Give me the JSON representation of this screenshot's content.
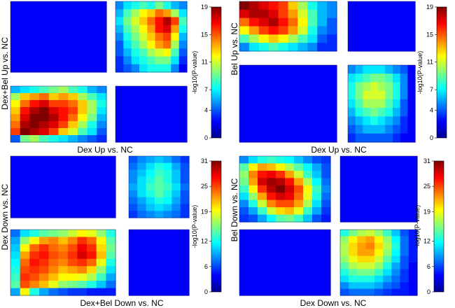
{
  "chart_data": [
    {
      "type": "heatmap",
      "panel": "top-left",
      "xlabel": "Dex Up vs. NC",
      "ylabel": "Dex+Bel Up vs. NC",
      "colorbar": {
        "label": "-log10(P-value)",
        "ticks": [
          0,
          4,
          7,
          11,
          15,
          19
        ],
        "range": [
          0,
          19
        ]
      },
      "quadrants": {
        "top_left": [
          [
            0
          ]
        ],
        "top_right": [
          [
            3,
            5,
            6,
            7,
            6,
            8,
            6,
            4,
            3
          ],
          [
            4,
            7,
            9,
            11,
            12,
            14,
            13,
            9,
            5
          ],
          [
            5,
            8,
            10,
            12,
            14,
            16,
            18,
            15,
            7
          ],
          [
            4,
            7,
            9,
            11,
            13,
            16,
            17,
            13,
            6
          ],
          [
            3,
            6,
            8,
            10,
            12,
            14,
            15,
            11,
            4
          ],
          [
            2,
            5,
            7,
            9,
            11,
            13,
            14,
            9,
            3
          ],
          [
            2,
            4,
            6,
            7,
            9,
            10,
            11,
            7,
            2
          ],
          [
            1,
            3,
            5,
            6,
            7,
            8,
            8,
            5,
            1
          ],
          [
            1,
            2,
            3,
            5,
            6,
            6,
            6,
            3,
            0
          ]
        ],
        "bottom_left": [
          [
            4,
            5,
            6,
            7,
            8,
            9,
            7,
            6,
            4,
            3
          ],
          [
            9,
            12,
            13,
            14,
            12,
            13,
            12,
            9,
            7,
            5
          ],
          [
            11,
            14,
            16,
            17,
            15,
            15,
            14,
            12,
            9,
            6
          ],
          [
            12,
            16,
            18,
            19,
            17,
            16,
            15,
            12,
            9,
            5
          ],
          [
            13,
            17,
            19,
            19,
            18,
            16,
            14,
            11,
            8,
            4
          ],
          [
            14,
            18,
            19,
            18,
            17,
            15,
            12,
            9,
            6,
            3
          ],
          [
            15,
            19,
            18,
            17,
            15,
            12,
            10,
            7,
            5,
            2
          ],
          [
            2,
            8,
            9,
            7,
            6,
            5,
            4,
            3,
            2,
            1
          ]
        ],
        "bottom_right": [
          [
            0
          ]
        ]
      }
    },
    {
      "type": "heatmap",
      "panel": "top-right",
      "xlabel": "Dex Up vs. NC",
      "ylabel": "Bel Up vs. NC",
      "colorbar": {
        "label": "-log10(P-value)",
        "ticks": [
          0,
          4,
          7,
          11,
          15,
          19
        ],
        "range": [
          0,
          19
        ]
      },
      "quadrants": {
        "top_left": [
          [
            19,
            18,
            17,
            16,
            15,
            12,
            9,
            6,
            4,
            3
          ],
          [
            17,
            18,
            18,
            17,
            15,
            13,
            10,
            7,
            4,
            3
          ],
          [
            14,
            16,
            17,
            18,
            16,
            14,
            11,
            7,
            4,
            2
          ],
          [
            11,
            13,
            15,
            16,
            15,
            13,
            10,
            6,
            3,
            2
          ],
          [
            7,
            9,
            11,
            12,
            11,
            9,
            7,
            5,
            2,
            1
          ],
          [
            3,
            5,
            6,
            7,
            6,
            5,
            4,
            3,
            1,
            1
          ]
        ],
        "top_right": [
          [
            0
          ]
        ],
        "bottom_left": [
          [
            0
          ]
        ],
        "bottom_right": [
          [
            3,
            4,
            5,
            5,
            5,
            4,
            3,
            2,
            0
          ],
          [
            5,
            6,
            7,
            8,
            8,
            7,
            5,
            3,
            0
          ],
          [
            6,
            8,
            9,
            10,
            9,
            8,
            6,
            3,
            0
          ],
          [
            6,
            8,
            10,
            10,
            10,
            8,
            6,
            3,
            0
          ],
          [
            5,
            7,
            9,
            9,
            9,
            7,
            5,
            2,
            0
          ],
          [
            4,
            6,
            7,
            8,
            7,
            6,
            4,
            2,
            0
          ],
          [
            3,
            4,
            5,
            6,
            5,
            4,
            3,
            1,
            0
          ],
          [
            2,
            3,
            4,
            4,
            4,
            3,
            2,
            1,
            0
          ],
          [
            1,
            2,
            2,
            2,
            2,
            2,
            1,
            0,
            0
          ]
        ]
      }
    },
    {
      "type": "heatmap",
      "panel": "bottom-left",
      "xlabel": "Dex+Bel Down vs. NC",
      "ylabel": "Dex Down vs. NC",
      "colorbar": {
        "label": "-log10(P-value)",
        "ticks": [
          0,
          6,
          12,
          19,
          25,
          31
        ],
        "range": [
          0,
          31
        ]
      },
      "quadrants": {
        "top_left": [
          [
            0
          ]
        ],
        "top_right": [
          [
            3,
            5,
            6,
            7,
            6,
            4,
            2
          ],
          [
            4,
            6,
            8,
            10,
            9,
            6,
            3
          ],
          [
            5,
            7,
            9,
            11,
            10,
            7,
            3
          ],
          [
            5,
            8,
            10,
            12,
            10,
            7,
            3
          ],
          [
            6,
            8,
            11,
            12,
            11,
            8,
            4
          ],
          [
            5,
            8,
            10,
            12,
            10,
            7,
            3
          ],
          [
            4,
            6,
            8,
            10,
            9,
            6,
            3
          ],
          [
            3,
            5,
            7,
            8,
            7,
            5,
            2
          ],
          [
            2,
            4,
            5,
            6,
            5,
            4,
            2
          ]
        ],
        "bottom_left": [
          [
            4,
            8,
            10,
            12,
            13,
            14,
            16,
            18,
            17,
            14,
            10
          ],
          [
            6,
            14,
            18,
            21,
            22,
            20,
            22,
            25,
            23,
            18,
            12
          ],
          [
            7,
            18,
            23,
            25,
            23,
            22,
            24,
            27,
            25,
            19,
            13
          ],
          [
            8,
            21,
            25,
            26,
            24,
            23,
            25,
            28,
            26,
            20,
            12
          ],
          [
            9,
            23,
            26,
            25,
            23,
            22,
            24,
            25,
            23,
            17,
            10
          ],
          [
            10,
            24,
            25,
            24,
            22,
            20,
            21,
            22,
            19,
            14,
            8
          ],
          [
            11,
            25,
            24,
            22,
            20,
            18,
            18,
            17,
            15,
            11,
            6
          ],
          [
            12,
            24,
            22,
            20,
            17,
            14,
            13,
            12,
            10,
            7,
            4
          ],
          [
            6,
            18,
            10,
            6,
            4,
            3,
            2,
            2,
            1,
            1,
            1
          ]
        ],
        "bottom_right": [
          [
            0
          ]
        ]
      }
    },
    {
      "type": "heatmap",
      "panel": "bottom-right",
      "xlabel": "Dex Down vs. NC",
      "ylabel": "Bel Down vs. NC",
      "colorbar": {
        "label": "-log10(P-value)",
        "ticks": [
          0,
          6,
          12,
          19,
          25,
          31
        ],
        "range": [
          0,
          31
        ]
      },
      "quadrants": {
        "top_left": [
          [
            5,
            8,
            10,
            11,
            10,
            9,
            7,
            5,
            3,
            2
          ],
          [
            12,
            18,
            21,
            20,
            18,
            15,
            12,
            9,
            6,
            3
          ],
          [
            14,
            22,
            26,
            27,
            25,
            21,
            16,
            11,
            7,
            3
          ],
          [
            13,
            21,
            28,
            30,
            29,
            26,
            21,
            15,
            9,
            4
          ],
          [
            11,
            18,
            25,
            29,
            31,
            28,
            24,
            18,
            11,
            5
          ],
          [
            8,
            14,
            21,
            26,
            28,
            27,
            23,
            17,
            10,
            4
          ],
          [
            5,
            10,
            16,
            22,
            24,
            24,
            21,
            15,
            8,
            3
          ],
          [
            3,
            6,
            11,
            16,
            19,
            20,
            17,
            11,
            6,
            2
          ],
          [
            2,
            3,
            6,
            9,
            12,
            13,
            11,
            7,
            3,
            1
          ]
        ],
        "top_right": [
          [
            0
          ]
        ],
        "bottom_left": [
          [
            0
          ]
        ],
        "bottom_right": [
          [
            10,
            13,
            15,
            16,
            14,
            11,
            7,
            3,
            1
          ],
          [
            14,
            18,
            20,
            21,
            18,
            14,
            9,
            4,
            1
          ],
          [
            15,
            19,
            21,
            22,
            19,
            15,
            10,
            4,
            1
          ],
          [
            15,
            19,
            21,
            21,
            18,
            14,
            9,
            4,
            1
          ],
          [
            14,
            17,
            19,
            19,
            16,
            12,
            8,
            3,
            1
          ],
          [
            12,
            15,
            16,
            16,
            14,
            10,
            6,
            3,
            0
          ],
          [
            10,
            12,
            13,
            13,
            11,
            8,
            5,
            2,
            0
          ],
          [
            8,
            10,
            10,
            10,
            8,
            6,
            4,
            2,
            0
          ],
          [
            5,
            7,
            7,
            7,
            6,
            4,
            3,
            1,
            0
          ],
          [
            3,
            4,
            4,
            4,
            3,
            2,
            1,
            1,
            0
          ]
        ]
      }
    }
  ]
}
